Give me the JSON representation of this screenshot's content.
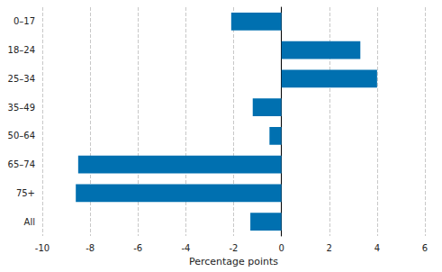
{
  "chart_data": {
    "type": "bar",
    "orientation": "horizontal",
    "categories": [
      "0–17",
      "18–24",
      "25–34",
      "35–49",
      "50–64",
      "65–74",
      "75+",
      "All"
    ],
    "values": [
      -2.1,
      3.3,
      4.0,
      -1.2,
      -0.5,
      -8.5,
      -8.6,
      -1.3
    ],
    "color": "#0070b0",
    "x_label": "Percentage points",
    "xlim": [
      -10,
      6
    ],
    "xticks": [
      -10,
      -8,
      -6,
      -4,
      -2,
      0,
      2,
      4,
      6
    ],
    "grid": true
  }
}
